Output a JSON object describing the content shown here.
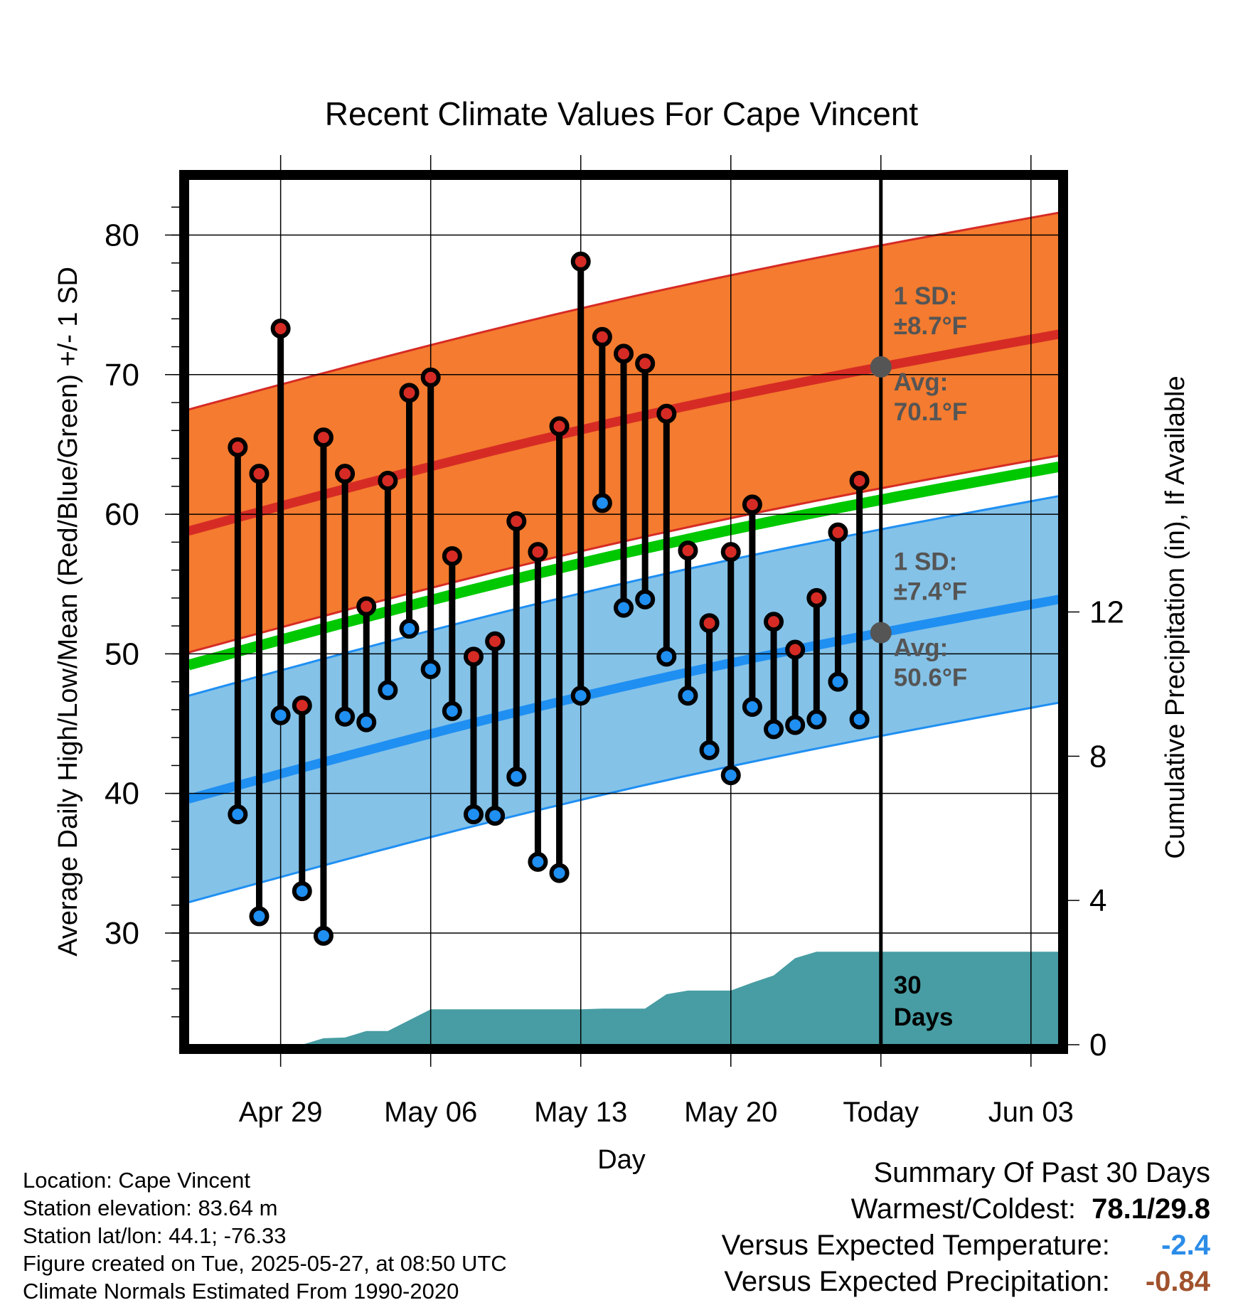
{
  "chart_data": {
    "type": "line",
    "title": "Recent Climate Values For Cape Vincent",
    "xlabel": "Day",
    "ylabel": "Average Daily High/Low/Mean (Red/Blue/Green) +/- 1 SD",
    "ylabel_right": "Cumulative Precipitation (in), If Available",
    "ylim": [
      22,
      84
    ],
    "ylim_right": [
      0,
      24
    ],
    "yticks": [
      30,
      40,
      50,
      60,
      70,
      80
    ],
    "yticks_right": [
      0,
      4,
      8,
      12
    ],
    "x_range_days": [
      -32.3,
      8.3
    ],
    "xticks": [
      {
        "day": -28,
        "label": "Apr 29"
      },
      {
        "day": -21,
        "label": "May 06"
      },
      {
        "day": -14,
        "label": "May 13"
      },
      {
        "day": -7,
        "label": "May 20"
      },
      {
        "day": 0,
        "label": "Today"
      },
      {
        "day": 7,
        "label": "Jun 03"
      }
    ],
    "grid": true,
    "today_day": 0,
    "daily_highs": [
      64.8,
      62.9,
      73.3,
      46.3,
      65.5,
      62.9,
      53.4,
      62.4,
      68.7,
      69.8,
      57.0,
      49.8,
      50.9,
      59.5,
      57.3,
      66.3,
      78.1,
      72.7,
      71.5,
      70.8,
      67.2,
      57.4,
      52.2,
      57.3,
      60.7,
      52.3,
      50.3,
      54.0,
      58.7,
      62.4
    ],
    "daily_lows": [
      38.5,
      31.2,
      45.6,
      33.0,
      29.8,
      45.5,
      45.1,
      47.4,
      51.8,
      48.9,
      45.9,
      38.5,
      38.4,
      41.2,
      35.1,
      34.3,
      47.0,
      60.8,
      53.3,
      53.9,
      49.8,
      47.0,
      43.1,
      41.3,
      46.2,
      44.6,
      44.9,
      45.3,
      48.0,
      45.3
    ],
    "first_obs_day": -30,
    "normal_high_start": 58.8,
    "normal_high_end": 72.9,
    "normal_low_start": 39.6,
    "normal_low_end": 53.9,
    "normal_mean_start": 49.2,
    "normal_mean_end": 63.4,
    "high_sd": 8.7,
    "low_sd": 7.4,
    "precip_cumulative": [
      {
        "day": -32.3,
        "in": 0.0
      },
      {
        "day": -27,
        "in": 0.0
      },
      {
        "day": -26,
        "in": 0.18
      },
      {
        "day": -25,
        "in": 0.2
      },
      {
        "day": -24,
        "in": 0.38
      },
      {
        "day": -23,
        "in": 0.38
      },
      {
        "day": -21,
        "in": 0.98
      },
      {
        "day": -14,
        "in": 0.98
      },
      {
        "day": -13,
        "in": 1.0
      },
      {
        "day": -11,
        "in": 1.0
      },
      {
        "day": -10,
        "in": 1.4
      },
      {
        "day": -9,
        "in": 1.5
      },
      {
        "day": -7,
        "in": 1.5
      },
      {
        "day": -6,
        "in": 1.72
      },
      {
        "day": -5,
        "in": 1.92
      },
      {
        "day": -4,
        "in": 2.4
      },
      {
        "day": -3,
        "in": 2.58
      },
      {
        "day": 8.3,
        "in": 2.58
      }
    ],
    "annotations": {
      "high_sd_label": "1 SD:",
      "high_sd_value": "±8.7°F",
      "high_avg_label": "Avg:",
      "high_avg_value": "70.1°F",
      "low_sd_label": "1 SD:",
      "low_sd_value": "±7.4°F",
      "low_avg_label": "Avg:",
      "low_avg_value": "50.6°F",
      "days_label_1": "30",
      "days_label_2": "Days"
    },
    "colors": {
      "high_band": "#f47b2f",
      "high_line": "#d62b25",
      "low_band": "#84c2e8",
      "low_line": "#1f8ff2",
      "mean_line": "#00c800",
      "precip": "#479da3",
      "high_dot": "#d62b25",
      "low_dot": "#1f8ff2",
      "annotation": "#555555"
    }
  },
  "info": {
    "location": "Location: Cape Vincent",
    "elevation": "Station elevation: 83.64 m",
    "latlon": "Station lat/lon: 44.1; -76.33",
    "created": "Figure created on Tue, 2025-05-27, at 08:50 UTC",
    "normals": "Climate Normals Estimated From 1990-2020"
  },
  "summary": {
    "title": "Summary Of Past 30 Days",
    "warmest_label": "Warmest/Coldest:",
    "warmest_value": "78.1/29.8",
    "temp_label": "Versus Expected Temperature:",
    "temp_value": "-2.4",
    "temp_color": "#2b8ce8",
    "precip_label": "Versus Expected Precipitation:",
    "precip_value": "-0.84",
    "precip_color": "#a0522d"
  }
}
